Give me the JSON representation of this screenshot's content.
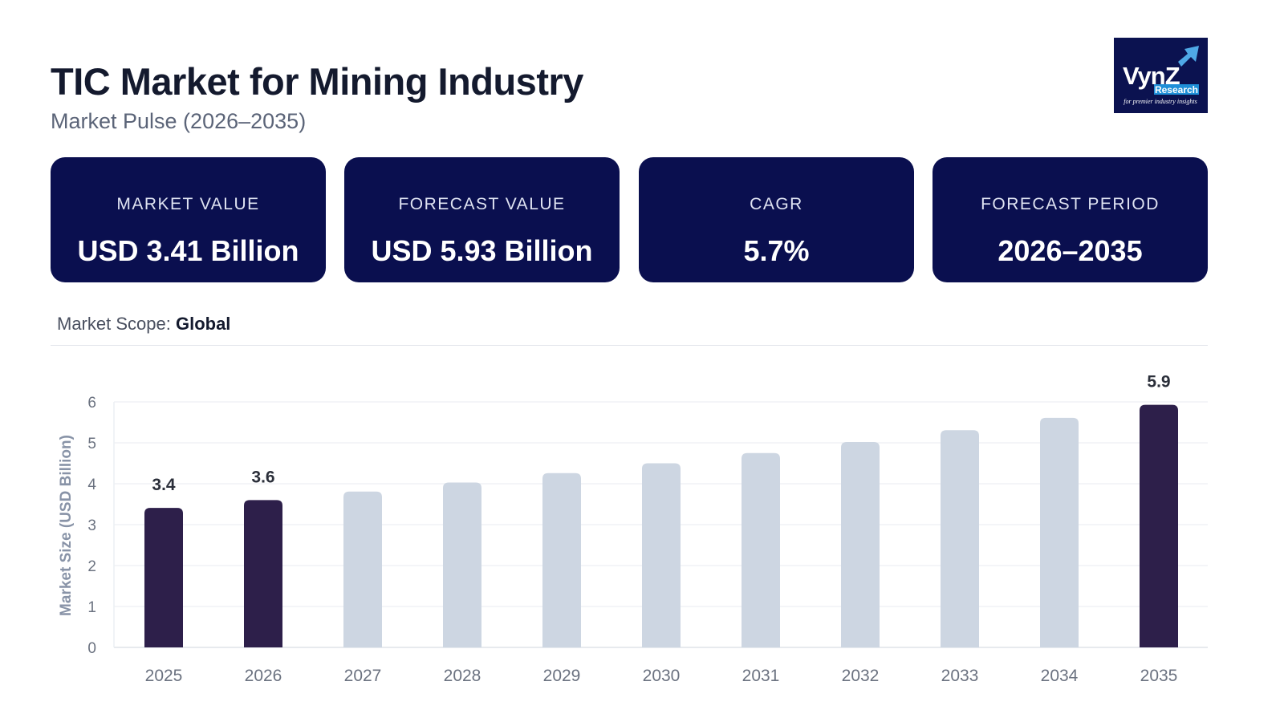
{
  "header": {
    "title": "TIC Market for Mining Industry",
    "subtitle": "Market Pulse (2026–2035)",
    "logo_text": "VynZ Research",
    "logo_tagline": "for premier industry insights"
  },
  "cards": [
    {
      "label": "MARKET VALUE",
      "value": "USD 3.41 Billion"
    },
    {
      "label": "FORECAST VALUE",
      "value": "USD 5.93 Billion"
    },
    {
      "label": "CAGR",
      "value": "5.7%"
    },
    {
      "label": "FORECAST PERIOD",
      "value": "2026–2035"
    }
  ],
  "scope": {
    "label": "Market Scope:",
    "value": "Global"
  },
  "colors": {
    "card_bg": "#0a0f4f",
    "highlight_bar": "#2d1f4a",
    "muted_bar": "#cdd6e2"
  },
  "chart_data": {
    "type": "bar",
    "categories": [
      "2025",
      "2026",
      "2027",
      "2028",
      "2029",
      "2030",
      "2031",
      "2032",
      "2033",
      "2034",
      "2035"
    ],
    "values": [
      3.41,
      3.6,
      3.81,
      4.03,
      4.26,
      4.5,
      4.75,
      5.02,
      5.31,
      5.61,
      5.93
    ],
    "highlighted": [
      "2025",
      "2026",
      "2035"
    ],
    "data_labels": {
      "2025": "3.4",
      "2026": "3.6",
      "2035": "5.9"
    },
    "ylabel": "Market Size (USD Billion)",
    "xlabel": "",
    "ylim": [
      0,
      6
    ],
    "yticks": [
      0,
      1,
      2,
      3,
      4,
      5,
      6
    ],
    "grid": true
  }
}
